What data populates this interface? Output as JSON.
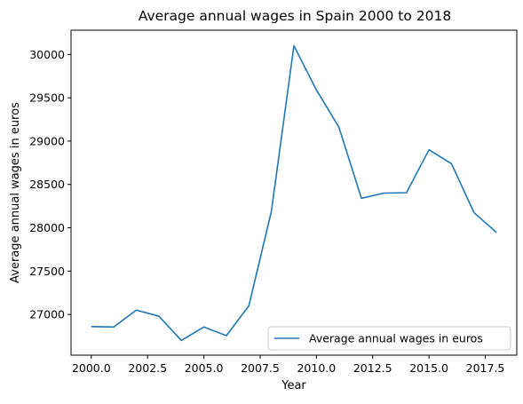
{
  "chart_data": {
    "type": "line",
    "title": "Average annual wages in Spain 2000 to 2018",
    "xlabel": "Year",
    "ylabel": "Average annual wages in euros",
    "x": [
      2000,
      2001,
      2002,
      2003,
      2004,
      2005,
      2006,
      2007,
      2008,
      2009,
      2010,
      2011,
      2012,
      2013,
      2014,
      2015,
      2016,
      2017,
      2018
    ],
    "series": [
      {
        "name": "Average annual wages in euros",
        "color": "#1f77b4",
        "values": [
          26860,
          26855,
          27050,
          26980,
          26700,
          26855,
          26755,
          27100,
          28190,
          30100,
          29590,
          29160,
          28340,
          28400,
          28405,
          28900,
          28740,
          28175,
          27945
        ]
      }
    ],
    "xlim": [
      1999.1,
      2018.9
    ],
    "ylim": [
      26530,
      30280
    ],
    "xticks": [
      2000.0,
      2002.5,
      2005.0,
      2007.5,
      2010.0,
      2012.5,
      2015.0,
      2017.5
    ],
    "xtick_labels": [
      "2000.0",
      "2002.5",
      "2005.0",
      "2007.5",
      "2010.0",
      "2012.5",
      "2015.0",
      "2017.5"
    ],
    "yticks": [
      27000,
      27500,
      28000,
      28500,
      29000,
      29500,
      30000
    ],
    "ytick_labels": [
      "27000",
      "27500",
      "28000",
      "28500",
      "29000",
      "29500",
      "30000"
    ],
    "grid": false,
    "legend_position": "bottom-right"
  }
}
